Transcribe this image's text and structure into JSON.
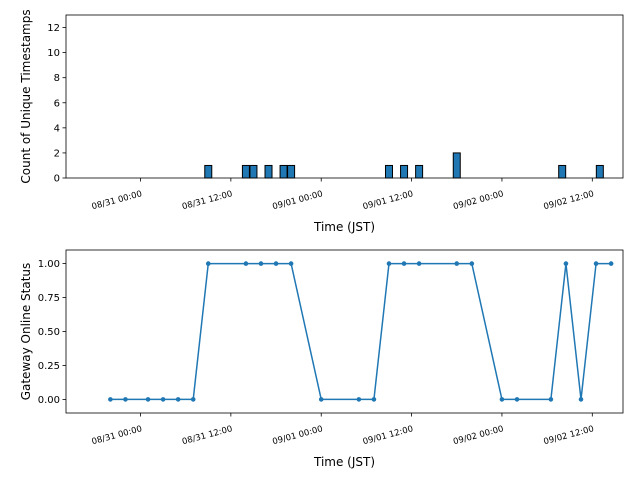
{
  "chart_data": [
    {
      "type": "bar",
      "xlabel": "Time (JST)",
      "ylabel": "Count of Unique Timestamps",
      "ylim": [
        0,
        13
      ],
      "yticks": [
        0,
        2,
        4,
        6,
        8,
        10,
        12
      ],
      "xticks": [
        "08/31 00:00",
        "08/31 12:00",
        "09/01 00:00",
        "09/01 12:00",
        "09/02 00:00",
        "09/02 12:00"
      ],
      "grid": false,
      "bar_color": "#1f77b4",
      "bar_edge_color": "#000000",
      "x": [
        "08/31 09:00",
        "08/31 14:00",
        "08/31 15:00",
        "08/31 17:00",
        "08/31 19:00",
        "08/31 20:00",
        "09/01 09:00",
        "09/01 11:00",
        "09/01 13:00",
        "09/01 18:00",
        "09/02 08:00",
        "09/02 13:00"
      ],
      "values": [
        1,
        1,
        1,
        1,
        1,
        1,
        1,
        1,
        1,
        2,
        1,
        1
      ]
    },
    {
      "type": "line",
      "xlabel": "Time (JST)",
      "ylabel": "Gateway Online Status",
      "ylim": [
        -0.1,
        1.1
      ],
      "yticks": [
        "0.00",
        "0.25",
        "0.50",
        "0.75",
        "1.00"
      ],
      "xticks": [
        "08/31 00:00",
        "08/31 12:00",
        "09/01 00:00",
        "09/01 12:00",
        "09/02 00:00",
        "09/02 12:00"
      ],
      "grid": false,
      "line_color": "#1f77b4",
      "markers": true,
      "x": [
        "08/30 20:00",
        "08/30 22:00",
        "08/31 01:00",
        "08/31 03:00",
        "08/31 05:00",
        "08/31 07:00",
        "08/31 09:00",
        "08/31 14:00",
        "08/31 16:00",
        "08/31 18:00",
        "08/31 20:00",
        "09/01 00:00",
        "09/01 05:00",
        "09/01 07:00",
        "09/01 09:00",
        "09/01 11:00",
        "09/01 13:00",
        "09/01 18:00",
        "09/01 20:00",
        "09/02 00:00",
        "09/02 02:00",
        "09/02 06:30",
        "09/02 08:30",
        "09/02 10:30",
        "09/02 12:30",
        "09/02 14:30"
      ],
      "values": [
        0,
        0,
        0,
        0,
        0,
        0,
        1,
        1,
        1,
        1,
        1,
        0,
        0,
        0,
        1,
        1,
        1,
        1,
        1,
        0,
        0,
        0,
        1,
        0,
        1,
        1
      ]
    }
  ]
}
